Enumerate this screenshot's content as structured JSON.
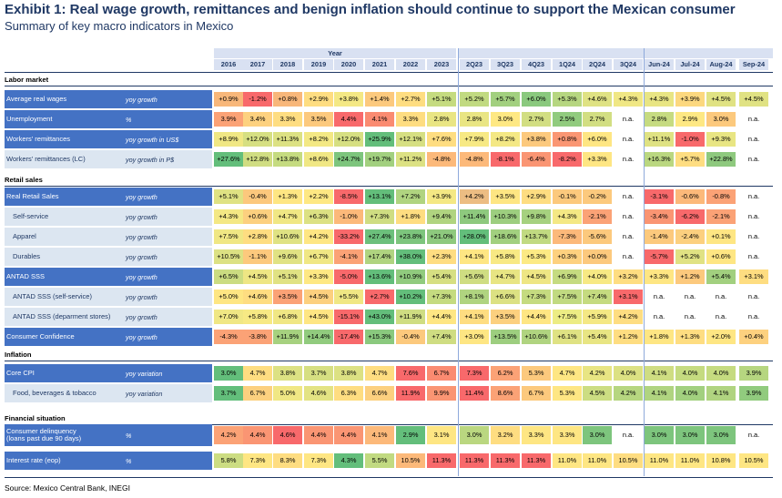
{
  "title": "Exhibit 1: Real wage growth, remittances and benign inflation should continue to support the Mexican consumer",
  "subtitle": "Summary of key macro indicators in Mexico",
  "year_header": "Year",
  "columns": [
    "2016",
    "2017",
    "2018",
    "2019",
    "2020",
    "2021",
    "2022",
    "2023",
    "2Q23",
    "3Q23",
    "4Q23",
    "1Q24",
    "2Q24",
    "3Q24",
    "Jun-24",
    "Jul-24",
    "Aug-24",
    "Sep-24"
  ],
  "source": "Source: Mexico Central Bank, INEGI",
  "colors": {
    "navy": "#1f3864",
    "row_blue": "#4472c4",
    "row_light": "#dce6f1",
    "na_bg": "#ffffff"
  },
  "sections": [
    {
      "title": "Labor market",
      "rows": [
        {
          "label": "Average real wages",
          "unit": "yoy growth",
          "style": "blue",
          "values": [
            "+0.9%",
            "-1.2%",
            "+0.8%",
            "+2.9%",
            "+3.8%",
            "+1.4%",
            "+2.7%",
            "+5.1%",
            "+5.2%",
            "+5.7%",
            "+6.0%",
            "+5.3%",
            "+4.6%",
            "+4.3%",
            "+4.3%",
            "+3.9%",
            "+4.5%",
            "+4.5%"
          ],
          "colors": [
            "#f8b77a",
            "#f8696b",
            "#f8b77a",
            "#fedd81",
            "#f4e884",
            "#fcc97d",
            "#fedd81",
            "#c5db80",
            "#c1da81",
            "#a2d07f",
            "#8ac97e",
            "#b6d680",
            "#dfe283",
            "#f0e784",
            "#e8e583",
            "#fcd87f",
            "#e0e283",
            "#e0e283"
          ]
        },
        {
          "label": "Unemployment",
          "unit": "%",
          "style": "blue",
          "values": [
            "3.9%",
            "3.4%",
            "3.3%",
            "3.5%",
            "4.4%",
            "4.1%",
            "3.3%",
            "2.8%",
            "2.8%",
            "3.0%",
            "2.7%",
            "2.5%",
            "2.7%",
            "n.a.",
            "2.8%",
            "2.9%",
            "3.0%",
            "n.a."
          ],
          "colors": [
            "#fba276",
            "#fdd17f",
            "#fedd81",
            "#fcc97d",
            "#f8696b",
            "#fa8b71",
            "#fedd81",
            "#e9e583",
            "#e9e583",
            "#fee883",
            "#d2de82",
            "#91cb7e",
            "#d2de82",
            "#ffffff",
            "#c6db81",
            "#fee883",
            "#fcc97d",
            "#ffffff"
          ]
        },
        {
          "label": "Workers' remittances",
          "unit": "yoy growth in US$",
          "style": "blue",
          "values": [
            "+8.9%",
            "+12.0%",
            "+11.3%",
            "+8.2%",
            "+12.0%",
            "+25.9%",
            "+12.1%",
            "+7.6%",
            "+7.9%",
            "+8.2%",
            "+3.8%",
            "+0.8%",
            "+6.0%",
            "n.a.",
            "+11.1%",
            "-1.0%",
            "+9.3%",
            "n.a."
          ],
          "colors": [
            "#f0e784",
            "#d6df82",
            "#dce183",
            "#f3e884",
            "#d6df82",
            "#63be7b",
            "#d6df82",
            "#fedd81",
            "#f7e984",
            "#f4e884",
            "#fcc97d",
            "#fa9673",
            "#fee683",
            "#ffffff",
            "#dfe283",
            "#f8696b",
            "#e8e583",
            "#ffffff"
          ]
        },
        {
          "label": "Workers' remittances (LC)",
          "unit": "yoy growth in P$",
          "style": "light",
          "values": [
            "+27.6%",
            "+12.8%",
            "+13.8%",
            "+8.6%",
            "+24.7%",
            "+19.7%",
            "+11.2%",
            "-4.8%",
            "-4.8%",
            "-8.1%",
            "-6.4%",
            "-8.2%",
            "+3.3%",
            "n.a.",
            "+16.3%",
            "+5.7%",
            "+22.8%",
            "n.a."
          ],
          "colors": [
            "#63be7b",
            "#d0dd82",
            "#c5db80",
            "#f0e784",
            "#7dc57d",
            "#a2d07f",
            "#dce183",
            "#fcb97a",
            "#fcb97a",
            "#f8696b",
            "#fa9573",
            "#f8696b",
            "#fee683",
            "#ffffff",
            "#bad780",
            "#fedd81",
            "#8ec97e",
            "#ffffff"
          ]
        }
      ]
    },
    {
      "title": "Retail sales",
      "rows": [
        {
          "label": "Real Retail Sales",
          "unit": "yoy growth",
          "style": "blue",
          "values": [
            "+5.1%",
            "-0.4%",
            "+1.3%",
            "+2.2%",
            "-8.5%",
            "+13.1%",
            "+7.2%",
            "+3.9%",
            "+4.2%",
            "+3.5%",
            "+2.9%",
            "-0.1%",
            "-0.2%",
            "n.a.",
            "-3.1%",
            "-0.6%",
            "-0.8%",
            "n.a."
          ],
          "colors": [
            "#dfe283",
            "#fcc87d",
            "#fee683",
            "#fee883",
            "#f8696b",
            "#63be7b",
            "#b0d480",
            "#f4e884",
            "#ecbd83",
            "#fee683",
            "#fedd81",
            "#fcc97d",
            "#fcc97d",
            "#ffffff",
            "#f8696b",
            "#fcb97a",
            "#fba276",
            "#ffffff"
          ]
        },
        {
          "label": "Self-service",
          "unit": "yoy growth",
          "style": "light",
          "indent": true,
          "values": [
            "+4.3%",
            "+0.6%",
            "+4.7%",
            "+6.3%",
            "-1.0%",
            "+7.3%",
            "+1.8%",
            "+9.4%",
            "+11.4%",
            "+10.3%",
            "+9.8%",
            "+4.3%",
            "-2.1%",
            "n.a.",
            "-3.4%",
            "-6.2%",
            "-2.1%",
            "n.a."
          ],
          "colors": [
            "#f4e884",
            "#fcd07f",
            "#f0e784",
            "#dce183",
            "#fcb97a",
            "#cfdd82",
            "#fedd81",
            "#b0d480",
            "#8ec97e",
            "#9dce7f",
            "#a6d17f",
            "#f4e884",
            "#fba276",
            "#ffffff",
            "#fa9573",
            "#f8696b",
            "#fba276",
            "#ffffff"
          ]
        },
        {
          "label": "Apparel",
          "unit": "yoy growth",
          "style": "light",
          "indent": true,
          "values": [
            "+7.5%",
            "+2.8%",
            "+10.6%",
            "+4.2%",
            "-33.2%",
            "+27.4%",
            "+23.8%",
            "+21.0%",
            "+28.0%",
            "+18.6%",
            "+13.7%",
            "-7.3%",
            "-5.6%",
            "n.a.",
            "-1.4%",
            "-2.4%",
            "+0.1%",
            "n.a."
          ],
          "colors": [
            "#f0e784",
            "#fedd81",
            "#dfe283",
            "#fee683",
            "#f8696b",
            "#6cc07c",
            "#7dc57d",
            "#8ec97e",
            "#63be7b",
            "#a2d07f",
            "#c1da81",
            "#fcb97a",
            "#fcc97d",
            "#ffffff",
            "#fcc97d",
            "#fcd07f",
            "#fee683",
            "#ffffff"
          ]
        },
        {
          "label": "Durables",
          "unit": "yoy growth",
          "style": "light",
          "indent": true,
          "values": [
            "+10.5%",
            "-1.1%",
            "+9.6%",
            "+6.7%",
            "-4.1%",
            "+17.4%",
            "+38.0%",
            "+2.3%",
            "+4.1%",
            "+5.8%",
            "+5.3%",
            "+0.3%",
            "+0.0%",
            "n.a.",
            "-5.7%",
            "+5.2%",
            "+0.6%",
            "n.a."
          ],
          "colors": [
            "#dce183",
            "#fcc97d",
            "#e0e283",
            "#f0e784",
            "#fba276",
            "#b0d480",
            "#63be7b",
            "#fedd81",
            "#fee683",
            "#f8e984",
            "#fcea84",
            "#fdd17f",
            "#fcc97d",
            "#ffffff",
            "#f8696b",
            "#e0e283",
            "#fee683",
            "#ffffff"
          ]
        },
        {
          "label": "ANTAD SSS",
          "unit": "yoy growth",
          "style": "blue",
          "values": [
            "+6.5%",
            "+4.5%",
            "+5.1%",
            "+3.3%",
            "-5.0%",
            "+13.6%",
            "+10.9%",
            "+5.4%",
            "+5.6%",
            "+4.7%",
            "+4.5%",
            "+6.9%",
            "+4.0%",
            "+3.2%",
            "+3.3%",
            "+1.2%",
            "+5.4%",
            "+3.1%"
          ],
          "colors": [
            "#cbdc81",
            "#eee684",
            "#e0e283",
            "#fee883",
            "#f8696b",
            "#63be7b",
            "#91cb7e",
            "#d6df82",
            "#cfdd82",
            "#e8e583",
            "#eee684",
            "#c5db80",
            "#f7e984",
            "#fedd81",
            "#fee683",
            "#fcc97d",
            "#a2d07f",
            "#fedd81"
          ]
        },
        {
          "label": "ANTAD SSS (self-service)",
          "unit": "yoy growth",
          "style": "light",
          "indent": true,
          "values": [
            "+5.0%",
            "+4.6%",
            "+3.5%",
            "+4.5%",
            "+5.5%",
            "+2.7%",
            "+10.2%",
            "+7.3%",
            "+8.1%",
            "+6.6%",
            "+7.3%",
            "+7.5%",
            "+7.4%",
            "+3.1%",
            "n.a.",
            "n.a.",
            "n.a.",
            "n.a."
          ],
          "colors": [
            "#fee683",
            "#fedd81",
            "#fba276",
            "#fcd07f",
            "#f0e784",
            "#f8696b",
            "#63be7b",
            "#c5db80",
            "#b0d480",
            "#dce183",
            "#c5db80",
            "#c1da81",
            "#c5db80",
            "#f8696b",
            "#ffffff",
            "#ffffff",
            "#ffffff",
            "#ffffff"
          ]
        },
        {
          "label": "ANTAD SSS (deparment stores)",
          "unit": "yoy growth",
          "style": "light",
          "indent": true,
          "values": [
            "+7.0%",
            "+5.8%",
            "+6.8%",
            "+4.5%",
            "-15.1%",
            "+43.0%",
            "+11.9%",
            "+4.4%",
            "+4.1%",
            "+3.5%",
            "+4.4%",
            "+7.5%",
            "+5.9%",
            "+4.2%",
            "n.a.",
            "n.a.",
            "n.a.",
            "n.a."
          ],
          "colors": [
            "#f0e784",
            "#f7e984",
            "#f0e784",
            "#fee683",
            "#f8696b",
            "#63be7b",
            "#cfdd82",
            "#fee683",
            "#fedd81",
            "#fcd07f",
            "#fee683",
            "#ecec84",
            "#f4e884",
            "#fedd81",
            "#ffffff",
            "#ffffff",
            "#ffffff",
            "#ffffff"
          ]
        },
        {
          "label": "Consumer Confidence",
          "unit": "yoy growth",
          "style": "blue",
          "values": [
            "-4.3%",
            "-3.8%",
            "+11.9%",
            "+14.4%",
            "-17.4%",
            "+15.3%",
            "-0.4%",
            "+7.4%",
            "+3.0%",
            "+13.5%",
            "+10.6%",
            "+6.1%",
            "+5.4%",
            "+1.2%",
            "+1.8%",
            "+1.3%",
            "+2.0%",
            "+0.4%"
          ],
          "colors": [
            "#fba276",
            "#fba276",
            "#a6d17f",
            "#91cb7e",
            "#f8696b",
            "#8ac97e",
            "#fcc97d",
            "#cfdd82",
            "#fee683",
            "#9dce7f",
            "#b0d480",
            "#dfe283",
            "#e8e583",
            "#fedd81",
            "#fee683",
            "#fedd81",
            "#fee683",
            "#fdd17f"
          ]
        }
      ]
    },
    {
      "title": "Inflation",
      "rows": [
        {
          "label": "Core CPI",
          "unit": "yoy variation",
          "style": "blue",
          "values": [
            "3.0%",
            "4.7%",
            "3.8%",
            "3.7%",
            "3.8%",
            "4.7%",
            "7.6%",
            "6.7%",
            "7.3%",
            "6.2%",
            "5.3%",
            "4.7%",
            "4.2%",
            "4.0%",
            "4.1%",
            "4.0%",
            "4.0%",
            "3.9%"
          ],
          "colors": [
            "#63be7b",
            "#fedd81",
            "#dce183",
            "#d6df82",
            "#dce183",
            "#fedd81",
            "#f8696b",
            "#fa8b71",
            "#f8696b",
            "#fba276",
            "#fcc97d",
            "#fee683",
            "#e8e583",
            "#dce183",
            "#cfdd82",
            "#c5db80",
            "#c5db80",
            "#b6d680"
          ]
        },
        {
          "label": "Food, beverages & tobacco",
          "unit": "yoy variation",
          "style": "light",
          "indent": true,
          "values": [
            "3.7%",
            "6.7%",
            "5.0%",
            "4.6%",
            "6.3%",
            "6.6%",
            "11.9%",
            "9.9%",
            "11.4%",
            "8.6%",
            "6.7%",
            "5.3%",
            "4.5%",
            "4.2%",
            "4.1%",
            "4.0%",
            "4.1%",
            "3.9%"
          ],
          "colors": [
            "#63be7b",
            "#fcd07f",
            "#f0e784",
            "#e3e383",
            "#fedd81",
            "#fcd07f",
            "#f8696b",
            "#fa9573",
            "#f8696b",
            "#fba276",
            "#fcc97d",
            "#fee683",
            "#ccdd82",
            "#b6d680",
            "#b0d480",
            "#a2d07f",
            "#b0d480",
            "#91cb7e"
          ]
        }
      ]
    },
    {
      "title": "Financial situation",
      "rows": [
        {
          "label": "Consumer delinquency\n(loans past due 90 days)",
          "unit": "%",
          "style": "blue",
          "tall": true,
          "values": [
            "4.2%",
            "4.4%",
            "4.6%",
            "4.4%",
            "4.4%",
            "4.1%",
            "2.9%",
            "3.1%",
            "3.0%",
            "3.2%",
            "3.3%",
            "3.3%",
            "3.0%",
            "n.a.",
            "3.0%",
            "3.0%",
            "3.0%",
            "n.a."
          ],
          "colors": [
            "#fba276",
            "#fa9573",
            "#f8696b",
            "#fa9573",
            "#fa9573",
            "#fcb97a",
            "#63be7b",
            "#fee683",
            "#bad780",
            "#fedd81",
            "#fee683",
            "#fee683",
            "#7dc57d",
            "#ffffff",
            "#7dc57d",
            "#7dc57d",
            "#7dc57d",
            "#ffffff"
          ]
        },
        {
          "label": "Interest rate (eop)",
          "unit": "%",
          "style": "blue",
          "values": [
            "5.8%",
            "7.3%",
            "8.3%",
            "7.3%",
            "4.3%",
            "5.5%",
            "10.5%",
            "11.3%",
            "11.3%",
            "11.3%",
            "11.3%",
            "11.0%",
            "11.0%",
            "10.5%",
            "11.0%",
            "11.0%",
            "10.8%",
            "10.5%"
          ],
          "colors": [
            "#ccdd82",
            "#fee683",
            "#fedd81",
            "#fee683",
            "#63be7b",
            "#c1da81",
            "#fcb97a",
            "#f8696b",
            "#f8696b",
            "#f8696b",
            "#f8696b",
            "#fee683",
            "#fee683",
            "#fedd81",
            "#fee683",
            "#fee683",
            "#fee683",
            "#fee683"
          ]
        }
      ]
    }
  ]
}
